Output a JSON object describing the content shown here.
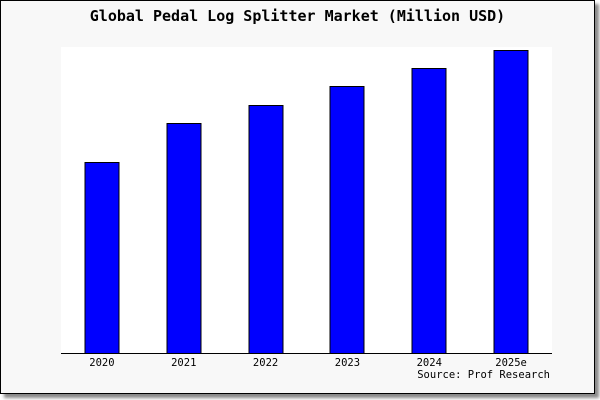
{
  "window": {
    "title": "Global Pedal Log Splitter Market (Million USD)"
  },
  "source": {
    "label": "Source: Prof Research"
  },
  "colors": {
    "bar_fill": "#0000ff",
    "bar_border": "#000000",
    "figure_bg": "#f8f8f8",
    "plot_bg": "#ffffff",
    "axis": "#000000",
    "frame_shadow": "#8a8a8a"
  },
  "chart_data": {
    "type": "bar",
    "title": "Global Pedal Log Splitter Market (Million USD)",
    "categories": [
      "2020",
      "2021",
      "2022",
      "2023",
      "2024",
      "2025e"
    ],
    "values": [
      63,
      76,
      82,
      88,
      94,
      100
    ],
    "xlabel": "",
    "ylabel": "",
    "ylim": [
      0,
      101
    ],
    "grid": false,
    "legend": null,
    "y_axis_ticks_visible": false,
    "source": "Source: Prof Research",
    "bar_color": "#0000ff"
  }
}
